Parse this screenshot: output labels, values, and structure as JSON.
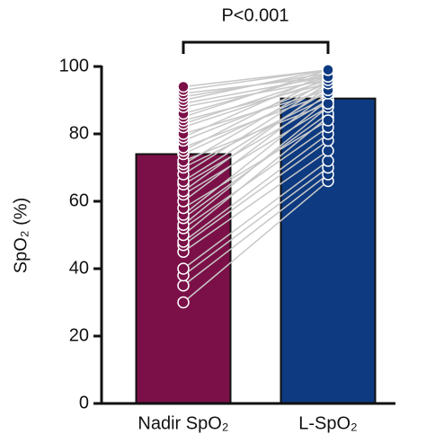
{
  "chart_data": {
    "type": "bar",
    "annotation": "P<0.001",
    "y_label": "SpO₂ (%)",
    "categories": [
      "Nadir SpO₂",
      "L-SpO₂"
    ],
    "values": [
      74,
      90.5
    ],
    "colors": [
      "#7b1048",
      "#0d3a80"
    ],
    "ylim": [
      0,
      100
    ],
    "yticks": [
      0,
      20,
      40,
      60,
      80,
      100
    ],
    "line_color": "#c8c8c8",
    "points": [
      [
        30,
        35,
        38,
        40,
        45,
        47,
        48,
        50,
        52,
        53,
        55,
        56,
        58,
        60,
        62,
        63,
        65,
        66,
        68,
        70,
        71,
        72,
        74,
        75,
        76,
        78,
        79,
        80,
        82,
        83,
        84,
        85,
        86,
        88,
        89,
        90,
        91,
        92,
        93,
        94
      ],
      [
        66,
        68,
        70,
        72,
        75,
        78,
        80,
        85,
        82,
        88,
        86,
        90,
        84,
        92,
        88,
        94,
        90,
        93,
        95,
        91,
        96,
        89,
        94,
        97,
        92,
        95,
        98,
        93,
        96,
        97,
        95,
        99,
        98,
        96,
        97,
        99,
        98,
        97,
        99,
        99
      ]
    ]
  }
}
